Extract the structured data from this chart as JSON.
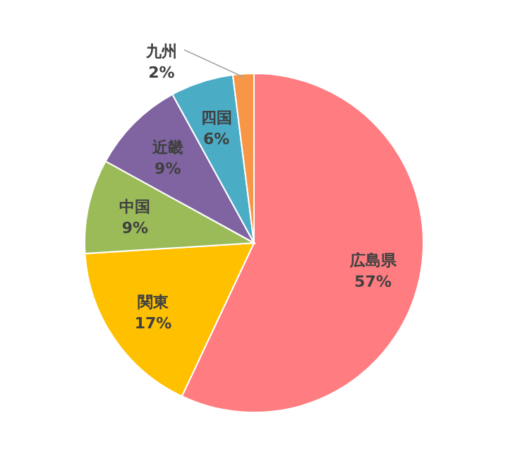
{
  "chart_data": {
    "type": "pie",
    "categories": [
      "広島県",
      "関東",
      "中国",
      "近畿",
      "四国",
      "九州"
    ],
    "values": [
      57,
      17,
      9,
      9,
      6,
      2
    ],
    "value_labels": [
      "57%",
      "17%",
      "9%",
      "9%",
      "6%",
      "2%"
    ],
    "colors": [
      "#ff7c80",
      "#ffc000",
      "#9bbb59",
      "#8064a2",
      "#4bacc6",
      "#f79646"
    ]
  }
}
